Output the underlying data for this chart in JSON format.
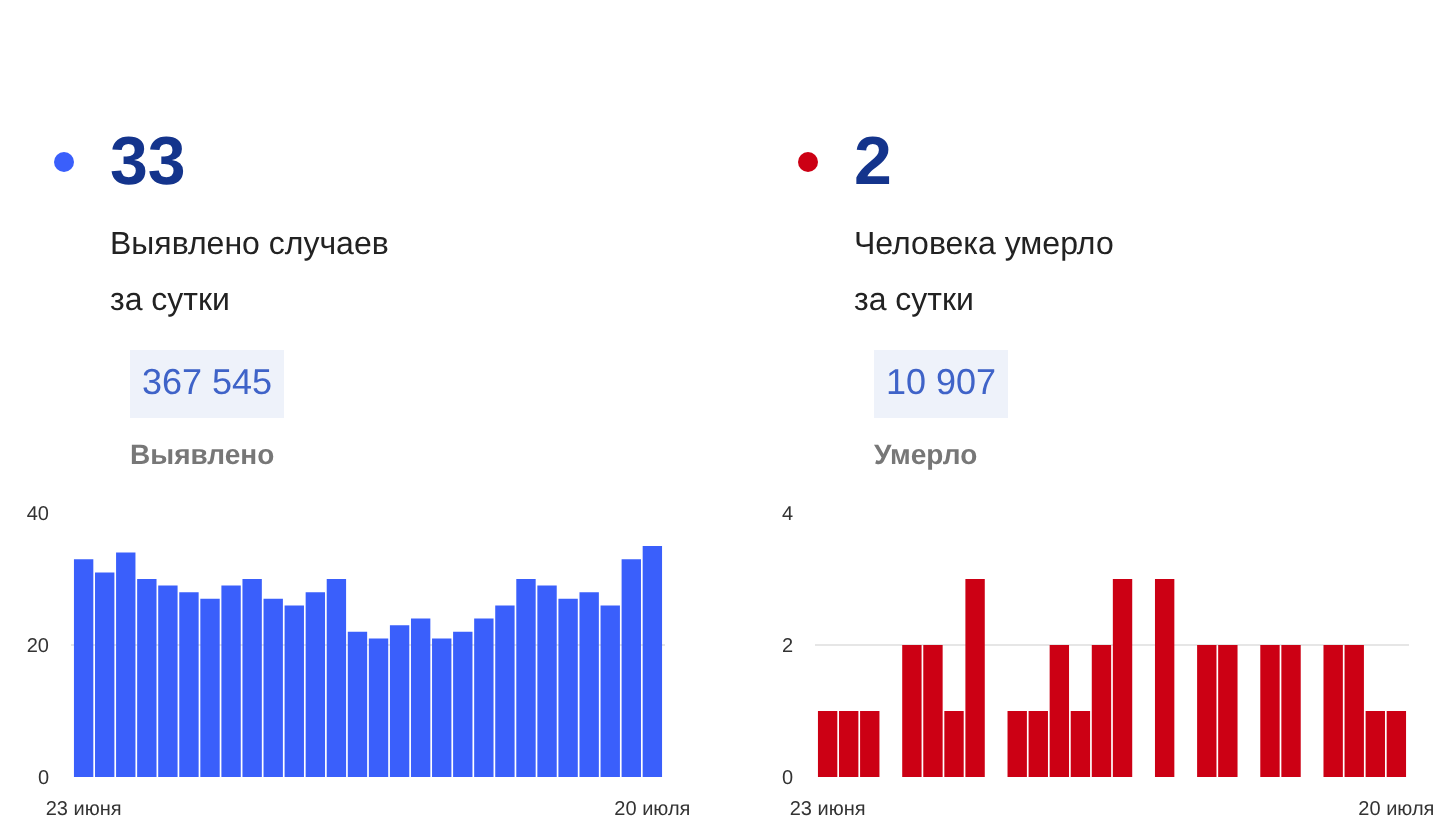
{
  "chart_data": [
    {
      "type": "bar",
      "title": "33",
      "subtitle": "Выявлено случаев\nза сутки",
      "annotations": [
        "367 545",
        "Выявлено"
      ],
      "categories": [
        "23 июня",
        null,
        null,
        null,
        null,
        null,
        null,
        null,
        null,
        null,
        null,
        null,
        null,
        null,
        null,
        null,
        null,
        null,
        null,
        null,
        null,
        null,
        null,
        null,
        null,
        null,
        null,
        "20 июля"
      ],
      "series": [
        {
          "color": "#3a5ffb",
          "values": [
            33,
            31,
            34,
            30,
            29,
            28,
            27,
            29,
            30,
            27,
            26,
            28,
            30,
            22,
            21,
            23,
            24,
            21,
            22,
            24,
            26,
            30,
            29,
            27,
            28,
            26,
            33,
            35
          ]
        }
      ],
      "ylim": [
        0,
        40
      ],
      "yticks": [
        0,
        20,
        40
      ],
      "grid": "y"
    },
    {
      "type": "bar",
      "title": "2",
      "subtitle": "Человека умерло\nза сутки",
      "annotations": [
        "10 907",
        "Умерло"
      ],
      "categories": [
        "23 июня",
        null,
        null,
        null,
        null,
        null,
        null,
        null,
        null,
        null,
        null,
        null,
        null,
        null,
        null,
        null,
        null,
        null,
        null,
        null,
        null,
        null,
        null,
        null,
        null,
        null,
        null,
        "20 июля"
      ],
      "series": [
        {
          "color": "#cc0014",
          "values": [
            1,
            1,
            1,
            0,
            2,
            2,
            1,
            3,
            0,
            1,
            1,
            2,
            1,
            2,
            3,
            0,
            3,
            0,
            2,
            2,
            0,
            2,
            2,
            0,
            2,
            2,
            1,
            1
          ]
        }
      ],
      "ylim": [
        0,
        4
      ],
      "yticks": [
        0,
        2,
        4
      ],
      "grid": "y"
    }
  ]
}
